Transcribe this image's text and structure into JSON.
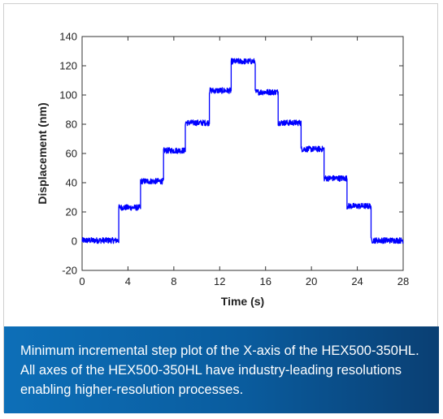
{
  "chart_data": {
    "type": "line",
    "xlabel": "Time (s)",
    "ylabel": "Displacement (nm)",
    "xlim": [
      0,
      28
    ],
    "ylim": [
      -20,
      140
    ],
    "xticks": [
      0,
      4,
      8,
      12,
      16,
      20,
      24,
      28
    ],
    "yticks": [
      -20,
      0,
      20,
      40,
      60,
      80,
      100,
      120,
      140
    ],
    "grid": false,
    "series": [
      {
        "color": "#0000ff",
        "steps": [
          {
            "x": [
              0,
              3.2
            ],
            "y": 0.5
          },
          {
            "x": [
              3.2,
              5.1
            ],
            "y": 23
          },
          {
            "x": [
              5.1,
              7.1
            ],
            "y": 41
          },
          {
            "x": [
              7.1,
              9.0
            ],
            "y": 62
          },
          {
            "x": [
              9.0,
              11.1
            ],
            "y": 81
          },
          {
            "x": [
              11.1,
              13.0
            ],
            "y": 103
          },
          {
            "x": [
              13.0,
              15.1
            ],
            "y": 123
          },
          {
            "x": [
              15.1,
              17.1
            ],
            "y": 102
          },
          {
            "x": [
              17.1,
              19.1
            ],
            "y": 81
          },
          {
            "x": [
              19.1,
              21.1
            ],
            "y": 63
          },
          {
            "x": [
              21.1,
              23.1
            ],
            "y": 43
          },
          {
            "x": [
              23.1,
              25.2
            ],
            "y": 24
          },
          {
            "x": [
              25.2,
              28
            ],
            "y": 0.5
          }
        ],
        "noise_amplitude": 2
      }
    ]
  },
  "caption": "Minimum incremental step plot of the X-axis of the HEX500-350HL. All axes of the HEX500-350HL have industry-leading resolutions enabling higher-resolution processes."
}
